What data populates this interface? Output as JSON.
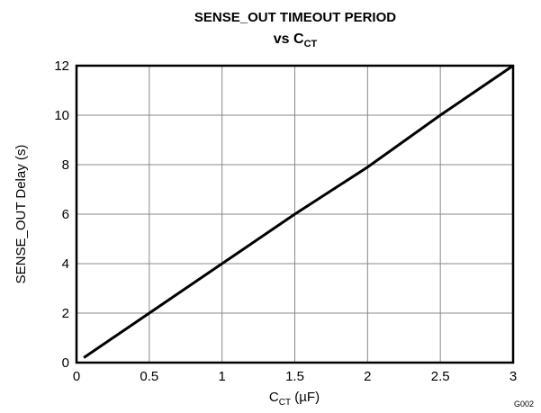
{
  "chart_data": {
    "type": "line",
    "title": "SENSE_OUT TIMEOUT PERIOD",
    "subtitle_parts": [
      "vs C",
      "CT"
    ],
    "xlabel_parts": [
      "C",
      "CT",
      " (µF)"
    ],
    "ylabel": "SENSE_OUT Delay (s)",
    "note": "G002",
    "x": [
      0.05,
      0.5,
      1,
      1.5,
      2,
      2.5,
      3
    ],
    "series": [
      {
        "name": "SENSE_OUT Delay",
        "color": "#000000",
        "values": [
          0.2,
          2,
          4,
          6,
          7.9,
          10,
          12
        ]
      }
    ],
    "xlim": [
      0,
      3
    ],
    "xticks": [
      0,
      0.5,
      1,
      1.5,
      2,
      2.5,
      3
    ],
    "ylim": [
      0,
      12
    ],
    "yticks": [
      0,
      2,
      4,
      6,
      8,
      10,
      12
    ],
    "grid": true
  }
}
